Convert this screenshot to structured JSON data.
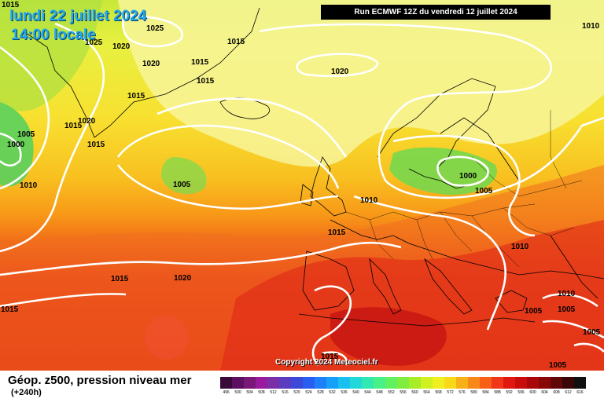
{
  "header": {
    "date": "lundi 22 juillet 2024",
    "time": "14:00 locale",
    "run": "Run ECMWF 12Z du vendredi 12 juillet 2024"
  },
  "copyright": "Copyright 2024 Meteociel.fr",
  "legend": {
    "title": "Géop. z500, pression niveau mer",
    "subtitle": "(+240h)",
    "ticks": [
      "496",
      "500",
      "504",
      "508",
      "512",
      "516",
      "520",
      "524",
      "528",
      "532",
      "536",
      "540",
      "544",
      "548",
      "552",
      "556",
      "560",
      "564",
      "568",
      "572",
      "576",
      "580",
      "584",
      "588",
      "592",
      "596",
      "600",
      "604",
      "608",
      "612",
      "616"
    ],
    "colors": [
      "#3a0a3a",
      "#5e1060",
      "#7a1878",
      "#9a1a9e",
      "#7a2fa8",
      "#5a3cc0",
      "#3c48d8",
      "#2a5ef0",
      "#1e80f8",
      "#16a0f8",
      "#18c0f0",
      "#22d8d8",
      "#30e8b0",
      "#48f088",
      "#60f060",
      "#80ec40",
      "#a8ec28",
      "#d0f020",
      "#f0f020",
      "#f8d818",
      "#f8b018",
      "#f88818",
      "#f86018",
      "#f03818",
      "#e01810",
      "#c80c0c",
      "#a80808",
      "#880808",
      "#600808",
      "#3a0606",
      "#101010"
    ]
  },
  "isobars": [
    "1015",
    "1025",
    "1025",
    "1020",
    "1015",
    "1020",
    "1015",
    "1015",
    "1015",
    "1010",
    "1015",
    "1020",
    "1015",
    "1005",
    "1000",
    "1010",
    "1005",
    "1020",
    "1010",
    "1015",
    "1000",
    "1005",
    "1010",
    "1015",
    "1020",
    "1015",
    "1010",
    "1005",
    "1005",
    "1005",
    "1015",
    "1005"
  ]
}
